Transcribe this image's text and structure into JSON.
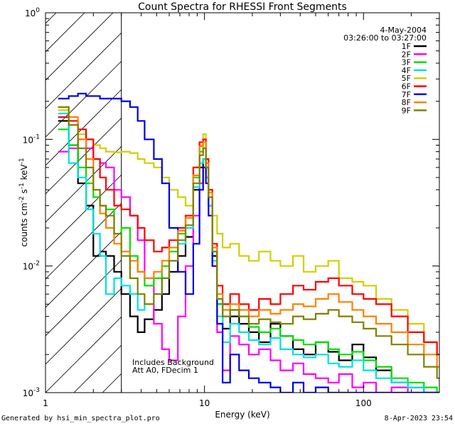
{
  "chart_data": {
    "type": "line",
    "title": "Count Spectra for RHESSI Front Segments",
    "xlabel": "Energy (keV)",
    "ylabel": "counts cm-2 s-1 keV-1",
    "xscale": "log",
    "yscale": "log",
    "xlim": [
      1,
      300
    ],
    "ylim": [
      0.001,
      1
    ],
    "x_ticks": [
      {
        "value": 1,
        "label": "1"
      },
      {
        "value": 10,
        "label": "10"
      },
      {
        "value": 100,
        "label": "100"
      }
    ],
    "y_ticks": [
      {
        "value": 1,
        "base": "10",
        "exp": "0"
      },
      {
        "value": 0.1,
        "base": "10",
        "exp": "-1"
      },
      {
        "value": 0.01,
        "base": "10",
        "exp": "-2"
      },
      {
        "value": 0.001,
        "base": "10",
        "exp": "-3"
      }
    ],
    "shaded_region_kev": [
      1,
      3
    ],
    "date": "4-May-2004",
    "time_range": "03:26:00 to 03:27:00",
    "annotations": [
      "Includes Background",
      "Att A0, FDecim 1"
    ],
    "series": [
      {
        "name": "1F",
        "color": "#000000",
        "x": [
          1.2,
          1.4,
          1.6,
          1.8,
          2.0,
          2.2,
          2.4,
          2.7,
          3.0,
          3.4,
          3.8,
          4.2,
          4.8,
          5.4,
          6.0,
          6.8,
          7.6,
          8.5,
          9.3,
          9.8,
          10.2,
          10.6,
          11.2,
          12.0,
          13.0,
          14.5,
          16.5,
          19.0,
          22.0,
          26.0,
          30.0,
          36.0,
          42.0,
          50.0,
          60.0,
          70.0,
          85.0,
          100.0,
          120.0,
          150.0,
          190.0,
          240.0,
          290.0
        ],
        "y": [
          0.14,
          0.09,
          0.045,
          0.03,
          0.012,
          0.013,
          0.012,
          0.009,
          0.006,
          0.004,
          0.003,
          0.0038,
          0.0045,
          0.006,
          0.009,
          0.012,
          0.017,
          0.04,
          0.06,
          0.07,
          0.05,
          0.03,
          0.012,
          0.005,
          0.0032,
          0.004,
          0.0035,
          0.003,
          0.0025,
          0.0035,
          0.0028,
          0.0022,
          0.002,
          0.0025,
          0.0021,
          0.0018,
          0.0024,
          0.0019,
          0.0015,
          0.0012,
          0.0011,
          0.001,
          0.001
        ]
      },
      {
        "name": "2F",
        "color": "#ff00ff",
        "x": [
          1.2,
          1.4,
          1.6,
          1.8,
          2.0,
          2.2,
          2.4,
          2.7,
          3.0,
          3.4,
          3.8,
          4.2,
          4.8,
          5.4,
          6.0,
          6.8,
          7.6,
          8.5,
          9.3,
          9.8,
          10.2,
          10.6,
          11.2,
          12.0,
          13.0,
          14.5,
          16.5,
          19.0,
          22.0,
          26.0,
          30.0,
          36.0,
          42.0,
          50.0,
          60.0,
          70.0,
          85.0,
          100.0,
          120.0,
          150.0,
          190.0,
          240.0,
          290.0
        ],
        "y": [
          0.08,
          0.085,
          0.1,
          0.085,
          0.07,
          0.065,
          0.06,
          0.04,
          0.035,
          0.025,
          0.016,
          0.008,
          0.0035,
          0.0022,
          0.0018,
          0.004,
          0.01,
          0.025,
          0.045,
          0.06,
          0.05,
          0.03,
          0.01,
          0.003,
          0.0015,
          0.0028,
          0.0024,
          0.002,
          0.0022,
          0.0018,
          0.0015,
          0.0017,
          0.0014,
          0.0013,
          0.0012,
          0.0014,
          0.0011,
          0.0012,
          0.001,
          0.0011,
          0.001,
          0.001,
          0.001
        ]
      },
      {
        "name": "3F",
        "color": "#00e000",
        "x": [
          1.2,
          1.4,
          1.6,
          1.8,
          2.0,
          2.2,
          2.4,
          2.7,
          3.0,
          3.4,
          3.8,
          4.2,
          4.8,
          5.4,
          6.0,
          6.8,
          7.6,
          8.5,
          9.3,
          9.8,
          10.2,
          10.6,
          11.2,
          12.0,
          13.0,
          14.5,
          16.5,
          19.0,
          22.0,
          26.0,
          30.0,
          36.0,
          42.0,
          50.0,
          60.0,
          70.0,
          85.0,
          100.0,
          120.0,
          150.0,
          190.0,
          240.0,
          290.0
        ],
        "y": [
          0.12,
          0.09,
          0.06,
          0.045,
          0.035,
          0.03,
          0.028,
          0.018,
          0.02,
          0.012,
          0.009,
          0.007,
          0.008,
          0.01,
          0.013,
          0.018,
          0.024,
          0.05,
          0.08,
          0.085,
          0.06,
          0.035,
          0.013,
          0.005,
          0.004,
          0.0045,
          0.004,
          0.0033,
          0.003,
          0.0032,
          0.0028,
          0.0026,
          0.0024,
          0.0025,
          0.0022,
          0.002,
          0.0021,
          0.0018,
          0.0016,
          0.0013,
          0.0012,
          0.0011,
          0.001
        ]
      },
      {
        "name": "4F",
        "color": "#00e0e0",
        "x": [
          1.2,
          1.4,
          1.6,
          1.8,
          2.0,
          2.2,
          2.4,
          2.7,
          3.0,
          3.4,
          3.8,
          4.2,
          4.8,
          5.4,
          6.0,
          6.8,
          7.6,
          8.5,
          9.3,
          9.8,
          10.2,
          10.6,
          11.2,
          12.0,
          13.0,
          14.5,
          16.5,
          19.0,
          22.0,
          26.0,
          30.0,
          36.0,
          42.0,
          50.0,
          60.0,
          70.0,
          85.0,
          100.0,
          120.0,
          150.0,
          190.0,
          240.0,
          290.0
        ],
        "y": [
          0.16,
          0.065,
          0.05,
          0.028,
          0.018,
          0.012,
          0.006,
          0.008,
          0.007,
          0.006,
          0.0045,
          0.005,
          0.006,
          0.008,
          0.011,
          0.015,
          0.02,
          0.042,
          0.065,
          0.07,
          0.05,
          0.03,
          0.011,
          0.004,
          0.0025,
          0.0035,
          0.003,
          0.0026,
          0.0024,
          0.0027,
          0.0022,
          0.002,
          0.0019,
          0.002,
          0.0017,
          0.0016,
          0.0018,
          0.0015,
          0.0013,
          0.0012,
          0.0011,
          0.001,
          0.001
        ]
      },
      {
        "name": "5F",
        "color": "#d0d000",
        "x": [
          1.2,
          1.4,
          1.6,
          1.8,
          2.0,
          2.2,
          2.4,
          2.7,
          3.0,
          3.4,
          3.8,
          4.2,
          4.8,
          5.4,
          6.0,
          6.8,
          7.6,
          8.5,
          9.3,
          9.8,
          10.2,
          10.6,
          11.2,
          12.0,
          13.0,
          14.5,
          16.5,
          19.0,
          22.0,
          26.0,
          30.0,
          36.0,
          42.0,
          50.0,
          60.0,
          70.0,
          85.0,
          100.0,
          120.0,
          150.0,
          190.0,
          240.0,
          290.0
        ],
        "y": [
          0.17,
          0.13,
          0.11,
          0.1,
          0.09,
          0.085,
          0.08,
          0.079,
          0.08,
          0.078,
          0.07,
          0.065,
          0.06,
          0.05,
          0.04,
          0.035,
          0.03,
          0.06,
          0.09,
          0.11,
          0.07,
          0.04,
          0.025,
          0.018,
          0.014,
          0.015,
          0.012,
          0.011,
          0.013,
          0.011,
          0.01,
          0.012,
          0.009,
          0.01,
          0.011,
          0.008,
          0.0075,
          0.007,
          0.0055,
          0.0045,
          0.0035,
          0.0025,
          0.002
        ]
      },
      {
        "name": "6F",
        "color": "#ff0000",
        "x": [
          1.2,
          1.4,
          1.6,
          1.8,
          2.0,
          2.2,
          2.4,
          2.7,
          3.0,
          3.4,
          3.8,
          4.2,
          4.8,
          5.4,
          6.0,
          6.8,
          7.6,
          8.5,
          9.3,
          9.8,
          10.2,
          10.6,
          11.2,
          12.0,
          13.0,
          14.5,
          16.5,
          19.0,
          22.0,
          26.0,
          30.0,
          36.0,
          42.0,
          50.0,
          60.0,
          70.0,
          85.0,
          100.0,
          120.0,
          150.0,
          190.0,
          240.0,
          290.0
        ],
        "y": [
          0.15,
          0.14,
          0.12,
          0.1,
          0.07,
          0.05,
          0.04,
          0.03,
          0.028,
          0.025,
          0.02,
          0.016,
          0.013,
          0.014,
          0.016,
          0.02,
          0.025,
          0.06,
          0.095,
          0.1,
          0.07,
          0.04,
          0.015,
          0.007,
          0.005,
          0.006,
          0.005,
          0.0045,
          0.0055,
          0.005,
          0.006,
          0.007,
          0.0065,
          0.0075,
          0.008,
          0.007,
          0.006,
          0.0055,
          0.005,
          0.004,
          0.003,
          0.0025,
          0.002
        ]
      },
      {
        "name": "7F",
        "color": "#0000e0",
        "x": [
          1.2,
          1.4,
          1.6,
          1.8,
          2.0,
          2.2,
          2.4,
          2.7,
          3.0,
          3.4,
          3.8,
          4.2,
          4.8,
          5.4,
          6.0,
          6.8,
          7.6,
          8.5,
          9.3,
          9.8,
          10.2,
          10.6,
          11.2,
          12.0,
          13.0,
          14.5,
          16.5,
          19.0,
          22.0,
          26.0,
          30.0,
          36.0,
          42.0,
          50.0,
          60.0,
          70.0,
          85.0,
          100.0,
          120.0,
          150.0,
          190.0,
          240.0,
          290.0
        ],
        "y": [
          0.21,
          0.22,
          0.23,
          0.22,
          0.22,
          0.21,
          0.21,
          0.21,
          0.2,
          0.18,
          0.14,
          0.1,
          0.07,
          0.045,
          0.02,
          0.009,
          0.006,
          0.015,
          0.04,
          0.06,
          0.045,
          0.025,
          0.01,
          0.0035,
          0.0012,
          0.002,
          0.0015,
          0.0013,
          0.0012,
          0.0011,
          0.001,
          0.0012,
          0.001,
          0.0011,
          0.001,
          0.001,
          0.001,
          0.001,
          0.001,
          0.001,
          0.001,
          0.001,
          0.001
        ]
      },
      {
        "name": "8F",
        "color": "#ff8000",
        "x": [
          1.2,
          1.4,
          1.6,
          1.8,
          2.0,
          2.2,
          2.4,
          2.7,
          3.0,
          3.4,
          3.8,
          4.2,
          4.8,
          5.4,
          6.0,
          6.8,
          7.6,
          8.5,
          9.3,
          9.8,
          10.2,
          10.6,
          11.2,
          12.0,
          13.0,
          14.5,
          16.5,
          19.0,
          22.0,
          26.0,
          30.0,
          36.0,
          42.0,
          50.0,
          60.0,
          70.0,
          85.0,
          100.0,
          120.0,
          150.0,
          190.0,
          240.0,
          290.0
        ],
        "y": [
          0.18,
          0.15,
          0.1,
          0.07,
          0.04,
          0.026,
          0.02,
          0.015,
          0.013,
          0.011,
          0.009,
          0.008,
          0.009,
          0.011,
          0.014,
          0.019,
          0.024,
          0.052,
          0.088,
          0.095,
          0.065,
          0.038,
          0.014,
          0.006,
          0.0045,
          0.005,
          0.0045,
          0.004,
          0.0045,
          0.0042,
          0.0045,
          0.005,
          0.0048,
          0.0055,
          0.006,
          0.0052,
          0.0045,
          0.004,
          0.0035,
          0.003,
          0.0024,
          0.002,
          0.0016
        ]
      },
      {
        "name": "9F",
        "color": "#808000",
        "x": [
          1.2,
          1.4,
          1.6,
          1.8,
          2.0,
          2.2,
          2.4,
          2.7,
          3.0,
          3.4,
          3.8,
          4.2,
          4.8,
          5.4,
          6.0,
          6.8,
          7.6,
          8.5,
          9.3,
          9.8,
          10.2,
          10.6,
          11.2,
          12.0,
          13.0,
          14.5,
          16.5,
          19.0,
          22.0,
          26.0,
          30.0,
          36.0,
          42.0,
          50.0,
          60.0,
          70.0,
          85.0,
          100.0,
          120.0,
          150.0,
          190.0,
          240.0,
          290.0
        ],
        "y": [
          0.18,
          0.13,
          0.085,
          0.06,
          0.04,
          0.03,
          0.025,
          0.018,
          0.012,
          0.008,
          0.006,
          0.005,
          0.006,
          0.008,
          0.011,
          0.016,
          0.021,
          0.045,
          0.075,
          0.085,
          0.06,
          0.035,
          0.013,
          0.0055,
          0.004,
          0.0045,
          0.004,
          0.0035,
          0.0038,
          0.0036,
          0.0035,
          0.004,
          0.0038,
          0.0042,
          0.0045,
          0.004,
          0.0036,
          0.0032,
          0.0028,
          0.0024,
          0.002,
          0.0016,
          0.0013
        ]
      }
    ]
  },
  "footer": {
    "generated_by": "Generated by hsi_min_spectra_plot.pro",
    "timestamp": "8-Apr-2023 23:54"
  }
}
